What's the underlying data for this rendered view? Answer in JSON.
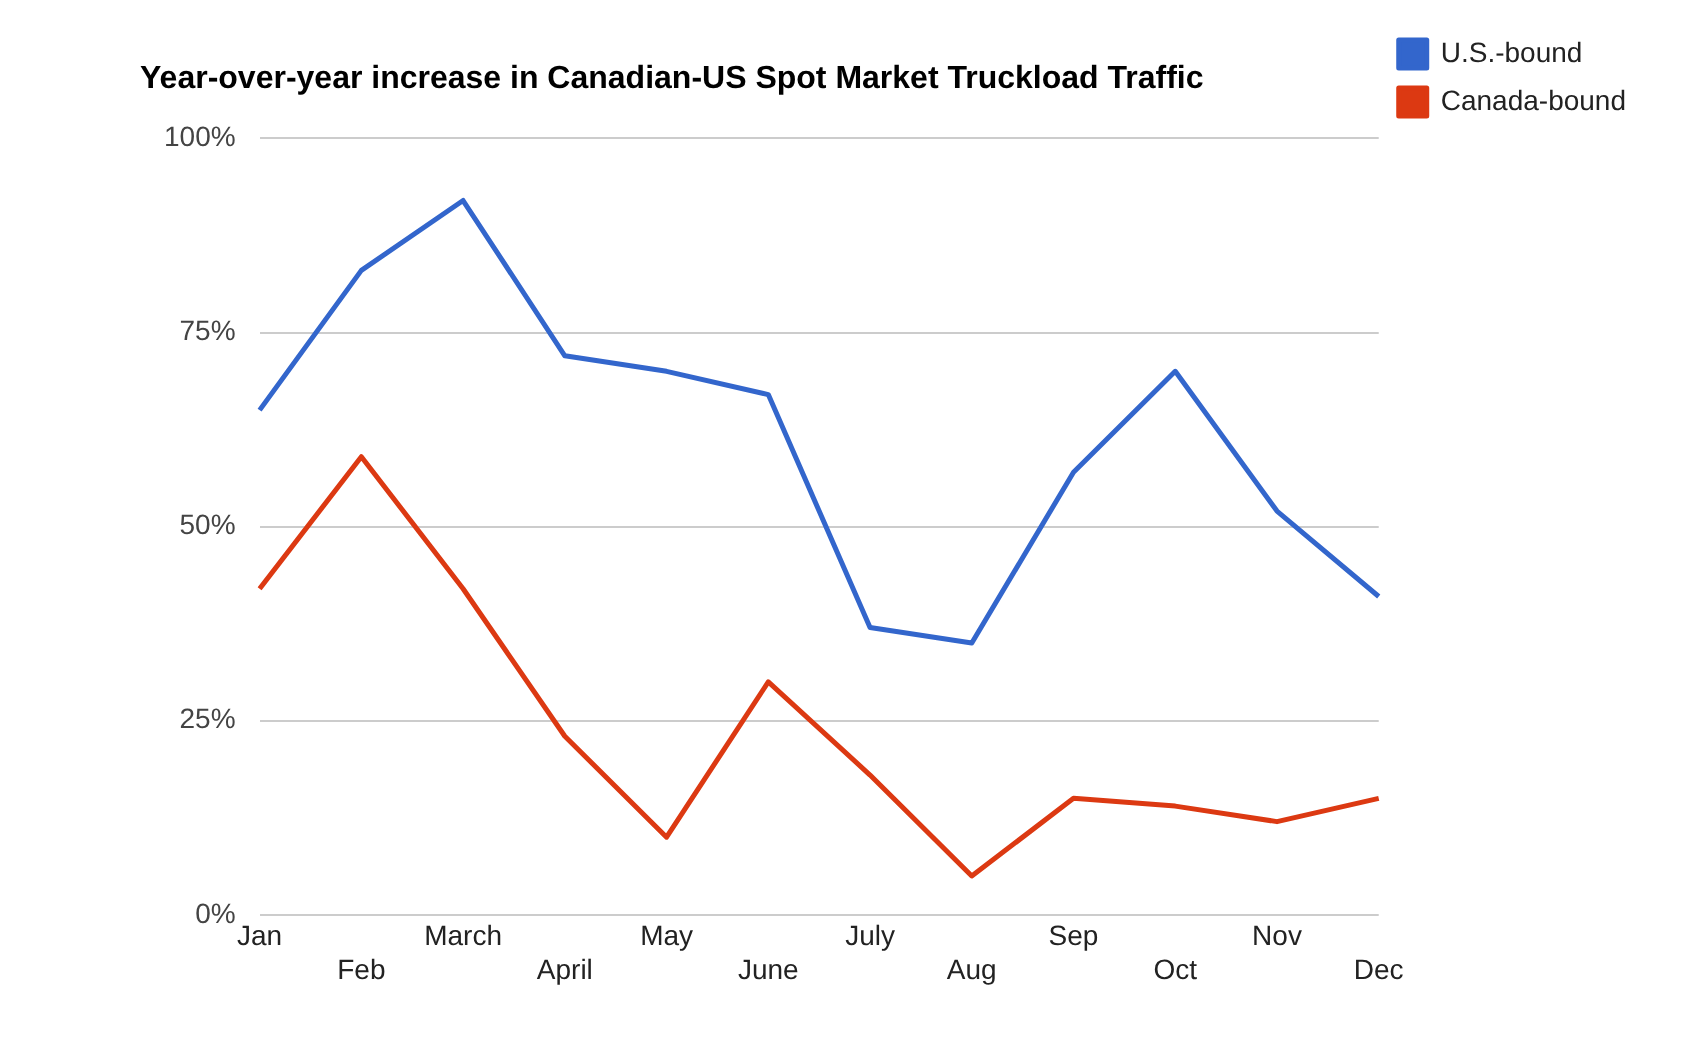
{
  "chart_data": {
    "type": "line",
    "title": "Year-over-year increase in Canadian-US Spot Market Truckload Traffic",
    "categories": [
      "Jan",
      "Feb",
      "March",
      "April",
      "May",
      "June",
      "July",
      "Aug",
      "Sep",
      "Oct",
      "Nov",
      "Dec"
    ],
    "series": [
      {
        "name": "U.S.-bound",
        "color": "#3366cc",
        "values": [
          65,
          83,
          92,
          72,
          70,
          67,
          37,
          35,
          57,
          70,
          52,
          41
        ]
      },
      {
        "name": "Canada-bound",
        "color": "#dc3912",
        "values": [
          42,
          59,
          42,
          23,
          10,
          30,
          18,
          5,
          15,
          14,
          12,
          15
        ]
      }
    ],
    "ylim": [
      0,
      100
    ],
    "yticks": [
      {
        "value": 0,
        "label": "0%"
      },
      {
        "value": 25,
        "label": "25%"
      },
      {
        "value": 50,
        "label": "50%"
      },
      {
        "value": 75,
        "label": "75%"
      },
      {
        "value": 100,
        "label": "100%"
      }
    ],
    "grid": "y",
    "legend": "top right",
    "marker": "none",
    "line_style": "solid"
  }
}
